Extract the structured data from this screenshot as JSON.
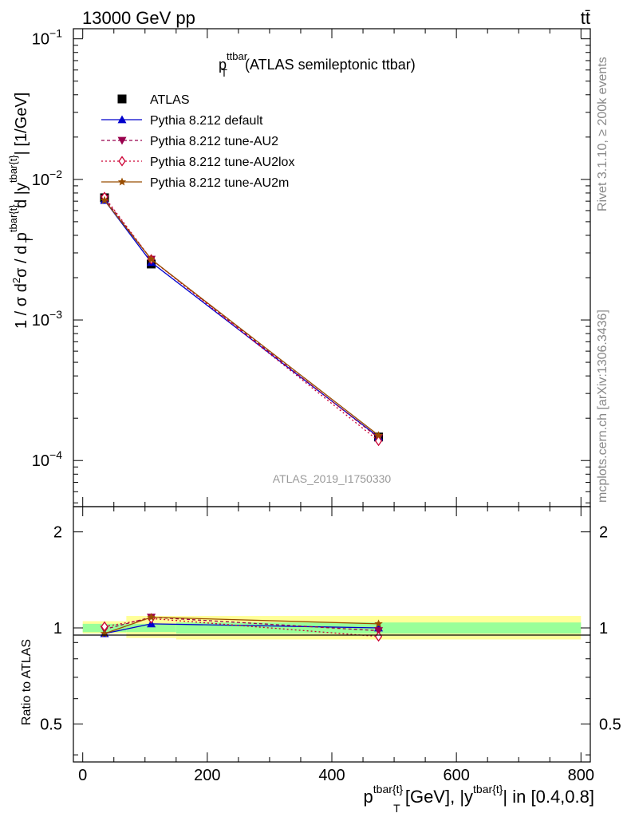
{
  "header": {
    "energy_label": "13000 GeV pp",
    "process_label": "tt̄"
  },
  "side_labels": {
    "rivet": "Rivet 3.1.10, ≥ 200k events",
    "mcplots": "mcplots.cern.ch [arXiv:1306.3436]"
  },
  "title": {
    "main": "p",
    "sub": "T",
    "sup": "ttbar",
    "rest": " (ATLAS semileptonic ttbar)"
  },
  "watermark": "ATLAS_2019_I1750330",
  "axes": {
    "ylabel_top": {
      "t1": "1 / σ d",
      "s1": "2",
      "t2": "σ / d p",
      "s2": "tbar{t}",
      "b2": "T",
      "t3": " d |y",
      "s3": "tbar{t}",
      "t4": "| [1/GeV]"
    },
    "ylabel_bottom": "Ratio to ATLAS",
    "xlabel": {
      "t1": "p",
      "s1": "tbar{t}",
      "b1": "T",
      "t2": " [GeV], |y",
      "s2": "tbar{t}",
      "t3": "| in [0.4,0.8]"
    },
    "top_ticks": [
      {
        "label": "10",
        "exp": "−4",
        "value": 0.0001
      },
      {
        "label": "10",
        "exp": "−3",
        "value": 0.001
      },
      {
        "label": "10",
        "exp": "−2",
        "value": 0.01
      },
      {
        "label": "10",
        "exp": "−1",
        "value": 0.1
      }
    ],
    "ratio_ticks": [
      {
        "label": "0.5",
        "value": 0.5
      },
      {
        "label": "1",
        "value": 1
      },
      {
        "label": "2",
        "value": 2
      }
    ],
    "x_ticks": [
      {
        "label": "0",
        "value": 0
      },
      {
        "label": "200",
        "value": 200
      },
      {
        "label": "400",
        "value": 400
      },
      {
        "label": "600",
        "value": 600
      },
      {
        "label": "800",
        "value": 800
      }
    ]
  },
  "legend": [
    {
      "label": "ATLAS",
      "color": "#000000",
      "marker": "square",
      "dash": ""
    },
    {
      "label": "Pythia 8.212 default",
      "color": "#0000cc",
      "marker": "triangle",
      "dash": ""
    },
    {
      "label": "Pythia 8.212 tune-AU2",
      "color": "#99004d",
      "marker": "triangle-down",
      "dash": "4,3"
    },
    {
      "label": "Pythia 8.212 tune-AU2lox",
      "color": "#cc0033",
      "marker": "diamond",
      "dash": "2,3"
    },
    {
      "label": "Pythia 8.212 tune-AU2m",
      "color": "#994d00",
      "marker": "star",
      "dash": ""
    }
  ],
  "chart_data": {
    "type": "line",
    "x_range": [
      -15,
      815
    ],
    "y_top_range": [
      4.7e-05,
      0.118
    ],
    "y_top_scale": "log",
    "y_ratio_range": [
      0.38,
      2.4
    ],
    "y_ratio_scale": "log",
    "bins": [
      {
        "center": 35,
        "low": 0,
        "high": 70
      },
      {
        "center": 110,
        "low": 70,
        "high": 150
      },
      {
        "center": 475,
        "low": 150,
        "high": 800
      }
    ],
    "ratio_bands": {
      "stat_lo": [
        0.97,
        0.97,
        0.96
      ],
      "stat_hi": [
        1.03,
        1.03,
        1.04
      ],
      "total_lo": [
        0.96,
        0.93,
        0.92
      ],
      "total_hi": [
        1.05,
        1.09,
        1.09
      ]
    },
    "series": [
      {
        "name": "ATLAS",
        "x": [
          35,
          110,
          475
        ],
        "y": [
          0.0074,
          0.0025,
          0.000147
        ]
      },
      {
        "name": "Pythia 8.212 default",
        "x": [
          35,
          110,
          475
        ],
        "y": [
          0.0071,
          0.00257,
          0.000147
        ],
        "ratio": [
          0.96,
          1.03,
          1.0
        ]
      },
      {
        "name": "Pythia 8.212 tune-AU2",
        "x": [
          35,
          110,
          475
        ],
        "y": [
          0.0073,
          0.0027,
          0.000145
        ],
        "ratio": [
          0.99,
          1.08,
          0.98
        ]
      },
      {
        "name": "Pythia 8.212 tune-AU2lox",
        "x": [
          35,
          110,
          475
        ],
        "y": [
          0.0075,
          0.0027,
          0.000138
        ],
        "ratio": [
          1.01,
          1.07,
          0.94
        ]
      },
      {
        "name": "Pythia 8.212 tune-AU2m",
        "x": [
          35,
          110,
          475
        ],
        "y": [
          0.0071,
          0.0027,
          0.000151
        ],
        "ratio": [
          0.96,
          1.08,
          1.03
        ]
      }
    ]
  }
}
